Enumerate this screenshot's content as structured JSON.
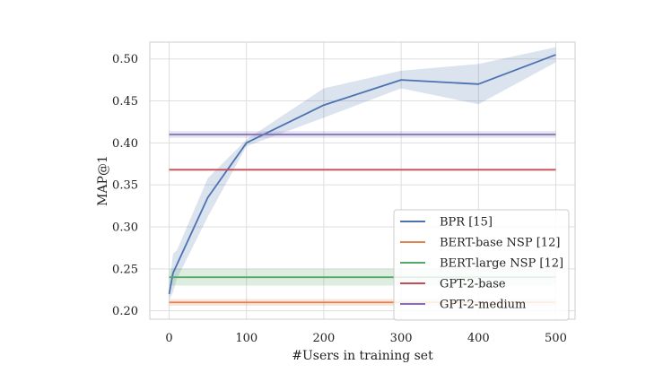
{
  "chart_data": {
    "type": "line",
    "xlabel": "#Users in training set",
    "ylabel": "MAP@1",
    "xlim": [
      -25,
      525
    ],
    "ylim": [
      0.19,
      0.52
    ],
    "xticks": [
      0,
      100,
      200,
      300,
      400,
      500
    ],
    "yticks": [
      0.2,
      0.25,
      0.3,
      0.35,
      0.4,
      0.45,
      0.5
    ],
    "xtick_labels": [
      "0",
      "100",
      "200",
      "300",
      "400",
      "500"
    ],
    "ytick_labels": [
      "0.20",
      "0.25",
      "0.30",
      "0.35",
      "0.40",
      "0.45",
      "0.50"
    ],
    "grid": true,
    "legend_position": "lower-right",
    "series": [
      {
        "name": "BPR [15]",
        "color": "#4c72b0",
        "x": [
          0,
          5,
          10,
          50,
          100,
          200,
          300,
          400,
          500
        ],
        "y": [
          0.22,
          0.245,
          0.255,
          0.335,
          0.4,
          0.445,
          0.475,
          0.47,
          0.505
        ],
        "y_low": [
          0.213,
          0.222,
          0.238,
          0.312,
          0.396,
          0.43,
          0.465,
          0.446,
          0.496
        ],
        "y_high": [
          0.228,
          0.268,
          0.272,
          0.358,
          0.404,
          0.465,
          0.486,
          0.494,
          0.514
        ]
      },
      {
        "name": "BERT-base NSP [12]",
        "color": "#dd8452",
        "x": [
          0,
          500
        ],
        "y": [
          0.21,
          0.21
        ],
        "y_low": [
          0.206,
          0.206
        ],
        "y_high": [
          0.214,
          0.214
        ]
      },
      {
        "name": "BERT-large NSP [12]",
        "color": "#55a868",
        "x": [
          0,
          500
        ],
        "y": [
          0.24,
          0.24
        ],
        "y_low": [
          0.23,
          0.23
        ],
        "y_high": [
          0.25,
          0.25
        ]
      },
      {
        "name": "GPT-2-base",
        "color": "#c44e52",
        "x": [
          0,
          500
        ],
        "y": [
          0.368,
          0.368
        ],
        "y_low": [
          0.368,
          0.368
        ],
        "y_high": [
          0.368,
          0.368
        ]
      },
      {
        "name": "GPT-2-medium",
        "color": "#8172b3",
        "x": [
          0,
          500
        ],
        "y": [
          0.41,
          0.41
        ],
        "y_low": [
          0.406,
          0.406
        ],
        "y_high": [
          0.414,
          0.414
        ]
      }
    ]
  }
}
